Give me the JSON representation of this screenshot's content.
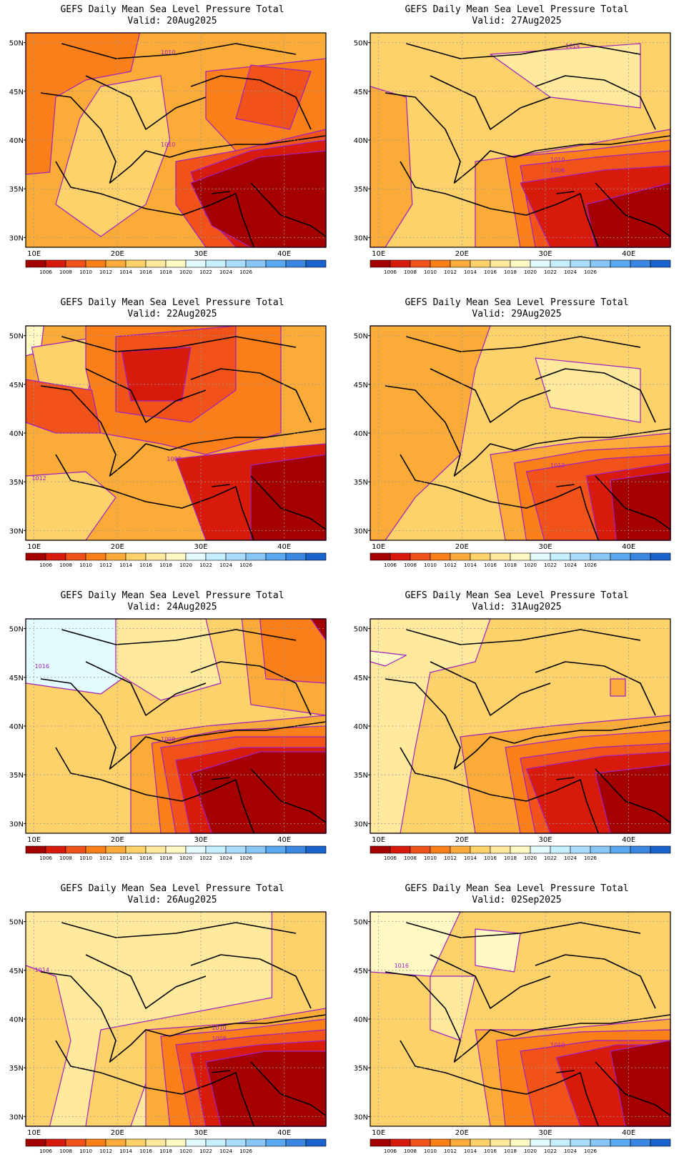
{
  "colorbar": {
    "colors": [
      "#a50000",
      "#d81a0a",
      "#f0521a",
      "#fb7f18",
      "#fbab38",
      "#fdd26a",
      "#fee99c",
      "#fff9c4",
      "#e2fbff",
      "#c6efff",
      "#aadcff",
      "#88c6f5",
      "#5aa8ef",
      "#3a86e0",
      "#1a62cc"
    ],
    "labels": [
      "1006",
      "1008",
      "1010",
      "1012",
      "1014",
      "1016",
      "1018",
      "1020",
      "1022",
      "1024",
      "1026"
    ]
  },
  "axes": {
    "lon_labels": [
      "10E",
      "20E",
      "30E",
      "40E"
    ],
    "lat_labels": [
      "50N",
      "45N",
      "40N",
      "35N",
      "30N"
    ]
  },
  "panels": [
    {
      "title": "GEFS Daily Mean Sea Level Pressure Total",
      "valid": "Valid: 20Aug2025",
      "contour_labels": [
        "1010",
        "1010"
      ]
    },
    {
      "title": "GEFS Daily Mean Sea Level Pressure Total",
      "valid": "Valid: 27Aug2025",
      "contour_labels": [
        "1014",
        "1010",
        "1006"
      ]
    },
    {
      "title": "GEFS Daily Mean Sea Level Pressure Total",
      "valid": "Valid: 22Aug2025",
      "contour_labels": [
        "1012",
        "1008"
      ]
    },
    {
      "title": "GEFS Daily Mean Sea Level Pressure Total",
      "valid": "Valid: 29Aug2025",
      "contour_labels": [
        "1010"
      ]
    },
    {
      "title": "GEFS Daily Mean Sea Level Pressure Total",
      "valid": "Valid: 24Aug2025",
      "contour_labels": [
        "1016",
        "1008"
      ]
    },
    {
      "title": "GEFS Daily Mean Sea Level Pressure Total",
      "valid": "Valid: 31Aug2025",
      "contour_labels": []
    },
    {
      "title": "GEFS Daily Mean Sea Level Pressure Total",
      "valid": "Valid: 26Aug2025",
      "contour_labels": [
        "1014",
        "1010",
        "1008"
      ]
    },
    {
      "title": "GEFS Daily Mean Sea Level Pressure Total",
      "valid": "Valid: 02Sep2025",
      "contour_labels": [
        "1016",
        "1010"
      ]
    }
  ]
}
